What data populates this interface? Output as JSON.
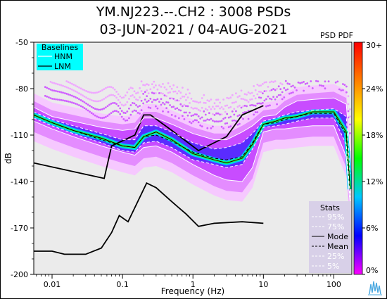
{
  "title_line1": "YM.NJ223.--.CH2 : 3008 PSDs",
  "title_line2": "03-JUN-2021 / 04-AUG-2021",
  "pdf_label": "PSD PDF",
  "chart_data": {
    "type": "heatmap",
    "xlabel": "Frequency (Hz)",
    "ylabel": "dB",
    "x_scale": "log",
    "xlim": [
      0.0055,
      180
    ],
    "ylim": [
      -200,
      -50
    ],
    "x_ticks": [
      0.01,
      0.1,
      1,
      10,
      100
    ],
    "x_tick_labels": [
      "0.01",
      "0.1",
      "1",
      "10",
      "100"
    ],
    "y_ticks": [
      -50,
      -80,
      -110,
      -140,
      -170,
      -200
    ],
    "y_tick_labels": [
      "-50",
      "-80",
      "-110",
      "-140",
      "-170",
      "-200"
    ],
    "colorbar": {
      "ticks": [
        "30+",
        "24%",
        "18%",
        "12%",
        "6%",
        "0%"
      ],
      "colors": [
        "#ff00ff",
        "#0000ff",
        "#00c8ff",
        "#00ff00",
        "#ffff00",
        "#ff8000",
        "#ff0000"
      ]
    },
    "baselines": {
      "title": "Baselines",
      "entries": [
        "HNM",
        "LNM"
      ],
      "hnm": {
        "x": [
          0.0055,
          0.055,
          0.07,
          0.15,
          0.2,
          0.25,
          0.5,
          1.2,
          3,
          5,
          10
        ],
        "y": [
          -128,
          -138,
          -117,
          -110,
          -97,
          -97,
          -107,
          -120,
          -111,
          -97,
          -91
        ]
      },
      "lnm": {
        "x": [
          0.0055,
          0.01,
          0.015,
          0.03,
          0.05,
          0.07,
          0.09,
          0.12,
          0.22,
          0.3,
          0.5,
          0.8,
          1.2,
          2,
          5,
          10
        ],
        "y": [
          -185,
          -185,
          -187,
          -187,
          -183,
          -173,
          -162,
          -166,
          -141,
          -144,
          -153,
          -161,
          -169,
          -167,
          -166,
          -167
        ]
      }
    },
    "statistics": {
      "title": "Stats",
      "entries": [
        "95%",
        "75%",
        "Mode",
        "Mean",
        "25%",
        "5%"
      ],
      "x": [
        0.0055,
        0.01,
        0.02,
        0.05,
        0.1,
        0.15,
        0.2,
        0.3,
        0.5,
        1,
        2,
        3,
        5,
        7,
        10,
        15,
        20,
        30,
        50,
        100,
        150,
        170
      ],
      "mode": [
        -97,
        -102,
        -107,
        -112,
        -117,
        -118,
        -111,
        -108,
        -113,
        -122,
        -126,
        -128,
        -125,
        -116,
        -103,
        -101,
        -99,
        -98,
        -95,
        -95,
        -108,
        -145
      ],
      "mean": [
        -97,
        -102,
        -107,
        -113,
        -117,
        -118,
        -111,
        -110,
        -114,
        -121,
        -125,
        -126,
        -124,
        -115,
        -103,
        -102,
        -100,
        -98,
        -96,
        -96,
        -110,
        -145
      ],
      "p95": [
        -92,
        -98,
        -101,
        -105,
        -107,
        -106,
        -99,
        -99,
        -103,
        -109,
        -113,
        -113,
        -108,
        -104,
        -98,
        -97,
        -92,
        -88,
        -87,
        -86,
        -90,
        -120
      ],
      "p75": [
        -95,
        -100,
        -104,
        -109,
        -113,
        -113,
        -104,
        -104,
        -108,
        -115,
        -119,
        -118,
        -115,
        -109,
        -101,
        -99,
        -97,
        -95,
        -94,
        -93,
        -98,
        -135
      ],
      "p25": [
        -99,
        -104,
        -109,
        -115,
        -120,
        -121,
        -115,
        -114,
        -118,
        -126,
        -129,
        -131,
        -129,
        -119,
        -105,
        -104,
        -103,
        -101,
        -99,
        -99,
        -116,
        -150
      ],
      "p5": [
        -101,
        -106,
        -111,
        -117,
        -121,
        -123,
        -118,
        -117,
        -121,
        -129,
        -136,
        -139,
        -140,
        -131,
        -108,
        -106,
        -106,
        -105,
        -104,
        -104,
        -124,
        -155
      ]
    }
  }
}
